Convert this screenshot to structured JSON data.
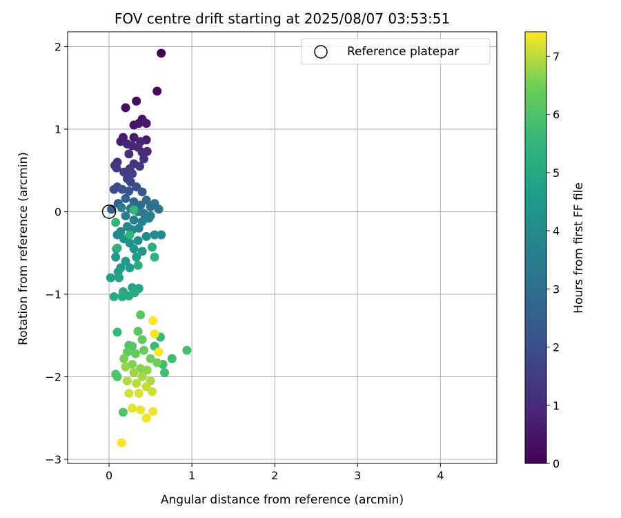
{
  "chart_data": {
    "type": "scatter",
    "title": "FOV centre drift starting at 2025/08/07 03:53:51",
    "xlabel": "Angular distance from reference (arcmin)",
    "ylabel": "Rotation from reference (arcmin)",
    "xlim": [
      -0.5,
      4.68
    ],
    "ylim": [
      -3.05,
      2.18
    ],
    "xticks": [
      0,
      1,
      2,
      3,
      4
    ],
    "yticks": [
      -3,
      -2,
      -1,
      0,
      1,
      2
    ],
    "grid": true,
    "legend": {
      "position": "top-right",
      "entries": [
        "Reference platepar"
      ]
    },
    "reference_point": {
      "x": 0.0,
      "y": 0.0,
      "label": "Reference platepar"
    },
    "colorbar": {
      "label": "Hours from first FF file",
      "range": [
        0,
        7.42
      ],
      "ticks": [
        0,
        1,
        2,
        3,
        4,
        5,
        6,
        7
      ],
      "colormap": "viridis"
    },
    "points": [
      {
        "x": 0.63,
        "y": 1.92,
        "t": 0.0
      },
      {
        "x": 0.58,
        "y": 1.46,
        "t": 0.2
      },
      {
        "x": 0.33,
        "y": 1.34,
        "t": 0.3
      },
      {
        "x": 0.2,
        "y": 1.26,
        "t": 0.35
      },
      {
        "x": 0.4,
        "y": 1.12,
        "t": 0.4
      },
      {
        "x": 0.3,
        "y": 1.05,
        "t": 0.45
      },
      {
        "x": 0.45,
        "y": 1.07,
        "t": 0.5
      },
      {
        "x": 0.36,
        "y": 1.07,
        "t": 0.55
      },
      {
        "x": 0.17,
        "y": 0.9,
        "t": 0.6
      },
      {
        "x": 0.3,
        "y": 0.9,
        "t": 0.65
      },
      {
        "x": 0.45,
        "y": 0.87,
        "t": 0.7
      },
      {
        "x": 0.14,
        "y": 0.85,
        "t": 0.75
      },
      {
        "x": 0.38,
        "y": 0.85,
        "t": 0.8
      },
      {
        "x": 0.22,
        "y": 0.82,
        "t": 0.85
      },
      {
        "x": 0.28,
        "y": 0.8,
        "t": 0.9
      },
      {
        "x": 0.35,
        "y": 0.78,
        "t": 0.95
      },
      {
        "x": 0.46,
        "y": 0.73,
        "t": 1.0
      },
      {
        "x": 0.4,
        "y": 0.72,
        "t": 1.05
      },
      {
        "x": 0.24,
        "y": 0.7,
        "t": 1.1
      },
      {
        "x": 0.42,
        "y": 0.64,
        "t": 1.15
      },
      {
        "x": 0.1,
        "y": 0.6,
        "t": 1.2
      },
      {
        "x": 0.07,
        "y": 0.56,
        "t": 1.25
      },
      {
        "x": 0.3,
        "y": 0.58,
        "t": 1.3
      },
      {
        "x": 0.37,
        "y": 0.55,
        "t": 1.35
      },
      {
        "x": 0.09,
        "y": 0.53,
        "t": 1.4
      },
      {
        "x": 0.25,
        "y": 0.52,
        "t": 1.45
      },
      {
        "x": 0.18,
        "y": 0.48,
        "t": 1.5
      },
      {
        "x": 0.28,
        "y": 0.46,
        "t": 1.55
      },
      {
        "x": 0.22,
        "y": 0.4,
        "t": 1.65
      },
      {
        "x": 0.26,
        "y": 0.36,
        "t": 1.75
      },
      {
        "x": 0.1,
        "y": 0.3,
        "t": 1.85
      },
      {
        "x": 0.06,
        "y": 0.27,
        "t": 1.95
      },
      {
        "x": 0.33,
        "y": 0.3,
        "t": 2.05
      },
      {
        "x": 0.16,
        "y": 0.27,
        "t": 2.15
      },
      {
        "x": 0.24,
        "y": 0.25,
        "t": 2.25
      },
      {
        "x": 0.4,
        "y": 0.24,
        "t": 2.35
      },
      {
        "x": 0.03,
        "y": 0.03,
        "t": 2.45
      },
      {
        "x": 0.11,
        "y": 0.1,
        "t": 2.55
      },
      {
        "x": 0.2,
        "y": 0.16,
        "t": 2.65
      },
      {
        "x": 0.3,
        "y": 0.12,
        "t": 2.75
      },
      {
        "x": 0.38,
        "y": 0.08,
        "t": 2.85
      },
      {
        "x": 0.45,
        "y": 0.14,
        "t": 2.95
      },
      {
        "x": 0.5,
        "y": 0.06,
        "t": 3.05
      },
      {
        "x": 0.55,
        "y": 0.1,
        "t": 3.15
      },
      {
        "x": 0.6,
        "y": 0.03,
        "t": 3.25
      },
      {
        "x": 0.26,
        "y": 0.04,
        "t": 3.3
      },
      {
        "x": 0.35,
        "y": 0.0,
        "t": 3.35
      },
      {
        "x": 0.42,
        "y": -0.02,
        "t": 3.4
      },
      {
        "x": 0.5,
        "y": -0.05,
        "t": 3.45
      },
      {
        "x": 0.2,
        "y": -0.05,
        "t": 3.5
      },
      {
        "x": 0.15,
        "y": 0.05,
        "t": 3.55
      },
      {
        "x": 0.3,
        "y": -0.1,
        "t": 3.6
      },
      {
        "x": 0.4,
        "y": -0.12,
        "t": 3.65
      },
      {
        "x": 0.48,
        "y": -0.08,
        "t": 3.7
      },
      {
        "x": 0.36,
        "y": -0.2,
        "t": 3.75
      },
      {
        "x": 0.28,
        "y": -0.22,
        "t": 3.8
      },
      {
        "x": 0.22,
        "y": -0.18,
        "t": 3.85
      },
      {
        "x": 0.14,
        "y": -0.24,
        "t": 3.9
      },
      {
        "x": 0.1,
        "y": -0.28,
        "t": 3.95
      },
      {
        "x": 0.45,
        "y": -0.3,
        "t": 4.0
      },
      {
        "x": 0.55,
        "y": -0.28,
        "t": 4.05
      },
      {
        "x": 0.63,
        "y": -0.28,
        "t": 4.1
      },
      {
        "x": 0.35,
        "y": -0.35,
        "t": 4.15
      },
      {
        "x": 0.25,
        "y": -0.38,
        "t": 4.2
      },
      {
        "x": 0.18,
        "y": -0.33,
        "t": 4.25
      },
      {
        "x": 0.09,
        "y": -0.45,
        "t": 4.3
      },
      {
        "x": 0.3,
        "y": -0.45,
        "t": 4.35
      },
      {
        "x": 0.4,
        "y": -0.48,
        "t": 4.4
      },
      {
        "x": 0.08,
        "y": -0.55,
        "t": 4.45
      },
      {
        "x": 0.2,
        "y": -0.6,
        "t": 4.5
      },
      {
        "x": 0.14,
        "y": -0.68,
        "t": 4.55
      },
      {
        "x": 0.25,
        "y": -0.68,
        "t": 4.6
      },
      {
        "x": 0.33,
        "y": -0.55,
        "t": 4.65
      },
      {
        "x": 0.11,
        "y": -0.73,
        "t": 4.7
      },
      {
        "x": 0.02,
        "y": -0.8,
        "t": 4.75
      },
      {
        "x": 0.12,
        "y": -0.8,
        "t": 4.8
      },
      {
        "x": 0.28,
        "y": -0.92,
        "t": 4.85
      },
      {
        "x": 0.36,
        "y": -0.93,
        "t": 4.9
      },
      {
        "x": 0.17,
        "y": -0.97,
        "t": 4.95
      },
      {
        "x": 0.31,
        "y": -0.98,
        "t": 5.0
      },
      {
        "x": 0.24,
        "y": -1.02,
        "t": 5.05
      },
      {
        "x": 0.16,
        "y": -1.03,
        "t": 5.1
      },
      {
        "x": 0.06,
        "y": -1.03,
        "t": 5.15
      },
      {
        "x": 0.35,
        "y": -0.65,
        "t": 5.2
      },
      {
        "x": 0.52,
        "y": -0.43,
        "t": 5.25
      },
      {
        "x": 0.55,
        "y": -0.55,
        "t": 5.3
      },
      {
        "x": 0.1,
        "y": -0.44,
        "t": 5.35
      },
      {
        "x": 0.25,
        "y": -0.28,
        "t": 5.4
      },
      {
        "x": 0.3,
        "y": 0.02,
        "t": 5.45
      },
      {
        "x": 0.08,
        "y": -0.13,
        "t": 5.5
      },
      {
        "x": 0.1,
        "y": -1.46,
        "t": 5.55
      },
      {
        "x": 0.62,
        "y": -1.52,
        "t": 5.6
      },
      {
        "x": 0.55,
        "y": -1.63,
        "t": 5.65
      },
      {
        "x": 0.65,
        "y": -1.85,
        "t": 5.7
      },
      {
        "x": 0.76,
        "y": -1.78,
        "t": 5.75
      },
      {
        "x": 0.67,
        "y": -1.95,
        "t": 5.8
      },
      {
        "x": 0.94,
        "y": -1.68,
        "t": 5.85
      },
      {
        "x": 0.24,
        "y": -1.62,
        "t": 5.9
      },
      {
        "x": 0.08,
        "y": -1.97,
        "t": 5.95
      },
      {
        "x": 0.1,
        "y": -2.0,
        "t": 6.0
      },
      {
        "x": 0.17,
        "y": -2.43,
        "t": 6.05
      },
      {
        "x": 0.28,
        "y": -1.63,
        "t": 6.1
      },
      {
        "x": 0.38,
        "y": -1.25,
        "t": 6.15
      },
      {
        "x": 0.35,
        "y": -1.45,
        "t": 6.2
      },
      {
        "x": 0.4,
        "y": -1.55,
        "t": 6.25
      },
      {
        "x": 0.22,
        "y": -1.7,
        "t": 6.3
      },
      {
        "x": 0.32,
        "y": -1.72,
        "t": 6.35
      },
      {
        "x": 0.42,
        "y": -1.68,
        "t": 6.4
      },
      {
        "x": 0.5,
        "y": -1.78,
        "t": 6.45
      },
      {
        "x": 0.58,
        "y": -1.83,
        "t": 6.5
      },
      {
        "x": 0.18,
        "y": -1.78,
        "t": 6.55
      },
      {
        "x": 0.28,
        "y": -1.85,
        "t": 6.6
      },
      {
        "x": 0.38,
        "y": -1.9,
        "t": 6.65
      },
      {
        "x": 0.46,
        "y": -1.92,
        "t": 6.7
      },
      {
        "x": 0.2,
        "y": -1.88,
        "t": 6.75
      },
      {
        "x": 0.3,
        "y": -1.95,
        "t": 6.8
      },
      {
        "x": 0.4,
        "y": -2.0,
        "t": 6.85
      },
      {
        "x": 0.5,
        "y": -2.05,
        "t": 6.9
      },
      {
        "x": 0.22,
        "y": -2.05,
        "t": 6.95
      },
      {
        "x": 0.33,
        "y": -2.08,
        "t": 7.0
      },
      {
        "x": 0.45,
        "y": -2.12,
        "t": 7.05
      },
      {
        "x": 0.52,
        "y": -2.18,
        "t": 7.1
      },
      {
        "x": 0.24,
        "y": -2.2,
        "t": 7.15
      },
      {
        "x": 0.36,
        "y": -2.2,
        "t": 7.2
      },
      {
        "x": 0.28,
        "y": -2.38,
        "t": 7.25
      },
      {
        "x": 0.38,
        "y": -2.4,
        "t": 7.3
      },
      {
        "x": 0.45,
        "y": -2.5,
        "t": 7.35
      },
      {
        "x": 0.15,
        "y": -2.8,
        "t": 7.42
      },
      {
        "x": 0.53,
        "y": -1.32,
        "t": 7.4
      },
      {
        "x": 0.6,
        "y": -1.7,
        "t": 7.38
      },
      {
        "x": 0.55,
        "y": -1.48,
        "t": 7.36
      },
      {
        "x": 0.53,
        "y": -2.42,
        "t": 7.34
      }
    ]
  }
}
